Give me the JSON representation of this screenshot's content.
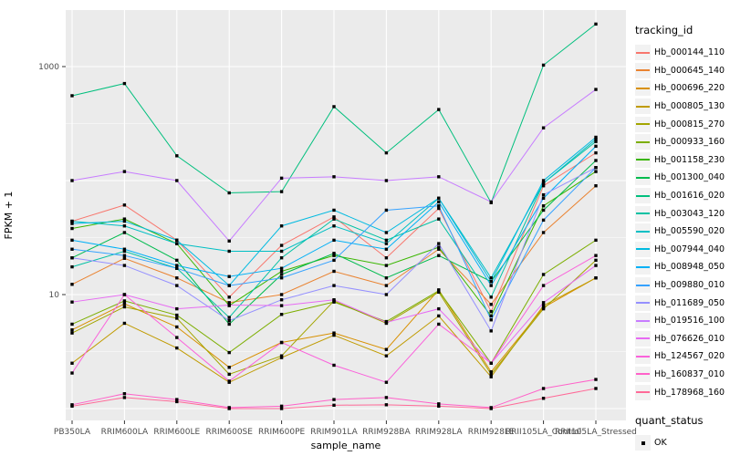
{
  "figure": {
    "xlabel": "sample_name",
    "ylabel": "FPKM + 1"
  },
  "legend": {
    "title": "tracking_id",
    "quant_title": "quant_status",
    "quant_item_label": "OK"
  },
  "colors": {
    "page_bg": "#ffffff",
    "panel_bg": "#ebebeb",
    "grid": "#ffffff",
    "axis_text": "#4d4d4d",
    "point": "#000000",
    "legend_key_bg": "#f2f2f2"
  },
  "chart_data": {
    "type": "line",
    "title": "",
    "xlabel": "sample_name",
    "ylabel": "FPKM + 1",
    "y_scale": "log10",
    "y_ticks": [
      10,
      1000
    ],
    "y_minor_ticks": [
      3.162,
      31.62,
      316.2
    ],
    "ylim": [
      0.8,
      3000
    ],
    "grid": "white major+minor gridlines on gray panel",
    "legend_position": "right",
    "point_marker": "small black square (quant_status = OK)",
    "categories": [
      "PB350LA",
      "RRIM600LA",
      "RRIM600LE",
      "RRIM600SE",
      "RRIM600PE",
      "RRIM901LA",
      "RRIM928BA",
      "RRIM928LA",
      "RRIM928LE",
      "RRII105LA_Control",
      "RRII105LA_Stressed"
    ],
    "series": [
      {
        "name": "Hb_000144_110",
        "color": "#F8766D",
        "values": [
          44,
          61,
          30,
          9.5,
          27,
          48,
          21,
          57,
          7.1,
          90,
          175
        ]
      },
      {
        "name": "Hb_000645_140",
        "color": "#EA8331",
        "values": [
          12.3,
          20.8,
          14,
          8.5,
          10,
          16,
          12,
          25,
          8.2,
          35,
          90
        ]
      },
      {
        "name": "Hb_000696_220",
        "color": "#D89000",
        "values": [
          4.9,
          8.3,
          5.2,
          2.3,
          3.8,
          4.6,
          3.3,
          11,
          2.1,
          7.7,
          14
        ]
      },
      {
        "name": "Hb_000805_130",
        "color": "#C09B00",
        "values": [
          2.5,
          5.6,
          3.4,
          1.7,
          2.8,
          4.4,
          2.9,
          6.5,
          1.9,
          8,
          14
        ]
      },
      {
        "name": "Hb_000815_270",
        "color": "#A3A500",
        "values": [
          4.6,
          7.8,
          6.2,
          2.0,
          2.9,
          8.8,
          5.6,
          10.5,
          2.0,
          7.5,
          20
        ]
      },
      {
        "name": "Hb_000933_160",
        "color": "#7CAE00",
        "values": [
          5.5,
          8.8,
          6.6,
          3.1,
          6.7,
          8.6,
          5.8,
          10.8,
          2.5,
          15,
          30
        ]
      },
      {
        "name": "Hb_001158_230",
        "color": "#39B600",
        "values": [
          38,
          46,
          28,
          8,
          16,
          22,
          18,
          26,
          6.5,
          60,
          120
        ]
      },
      {
        "name": "Hb_001300_040",
        "color": "#00BB4E",
        "values": [
          21,
          35,
          20,
          5.5,
          15,
          23,
          14,
          22,
          13,
          55,
          150
        ]
      },
      {
        "name": "Hb_001616_020",
        "color": "#00BF7D",
        "values": [
          555,
          710,
          165,
          78,
          80,
          445,
          175,
          420,
          64,
          1030,
          2360
        ]
      },
      {
        "name": "Hb_003043_120",
        "color": "#00C1A3",
        "values": [
          17.5,
          24,
          17,
          6.3,
          21,
          46,
          30,
          46,
          9.5,
          95,
          220
        ]
      },
      {
        "name": "Hb_005590_020",
        "color": "#00BFC4",
        "values": [
          44,
          40,
          28,
          24,
          24,
          40,
          28,
          70,
          14,
          95,
          230
        ]
      },
      {
        "name": "Hb_007944_040",
        "color": "#00BAE0",
        "values": [
          42,
          44,
          30,
          12,
          40,
          55,
          35,
          70,
          13,
          100,
          240
        ]
      },
      {
        "name": "Hb_008948_050",
        "color": "#00B0F6",
        "values": [
          30,
          25,
          18,
          14.4,
          17,
          30,
          25,
          65,
          12,
          70,
          200
        ]
      },
      {
        "name": "Hb_009880_010",
        "color": "#35A2FF",
        "values": [
          25,
          22,
          17,
          12,
          14,
          20,
          55,
          60,
          6,
          45,
          130
        ]
      },
      {
        "name": "Hb_011689_050",
        "color": "#9590FF",
        "values": [
          21,
          18,
          12,
          5.9,
          9,
          12,
          10,
          28,
          4.8,
          75,
          130
        ]
      },
      {
        "name": "Hb_019516_100",
        "color": "#C77CFF",
        "values": [
          100,
          120,
          100,
          29.5,
          105,
          108,
          100,
          108,
          65,
          290,
          630
        ]
      },
      {
        "name": "Hb_076626_010",
        "color": "#E76BF3",
        "values": [
          8.6,
          10,
          7.5,
          8.1,
          8.0,
          9,
          5.7,
          7.5,
          2.5,
          8.5,
          18
        ]
      },
      {
        "name": "Hb_124567_020",
        "color": "#FA62DB",
        "values": [
          2.05,
          10,
          4.2,
          1.74,
          3.8,
          2.4,
          1.7,
          5.5,
          2.5,
          12,
          22
        ]
      },
      {
        "name": "Hb_160837_010",
        "color": "#FF61C9",
        "values": [
          1.08,
          1.35,
          1.2,
          1.02,
          1.05,
          1.2,
          1.25,
          1.1,
          1.02,
          1.5,
          1.8
        ]
      },
      {
        "name": "Hb_178968_160",
        "color": "#FF6A98",
        "values": [
          1.05,
          1.25,
          1.15,
          1.0,
          1.0,
          1.07,
          1.08,
          1.05,
          1.0,
          1.23,
          1.5
        ]
      }
    ]
  }
}
